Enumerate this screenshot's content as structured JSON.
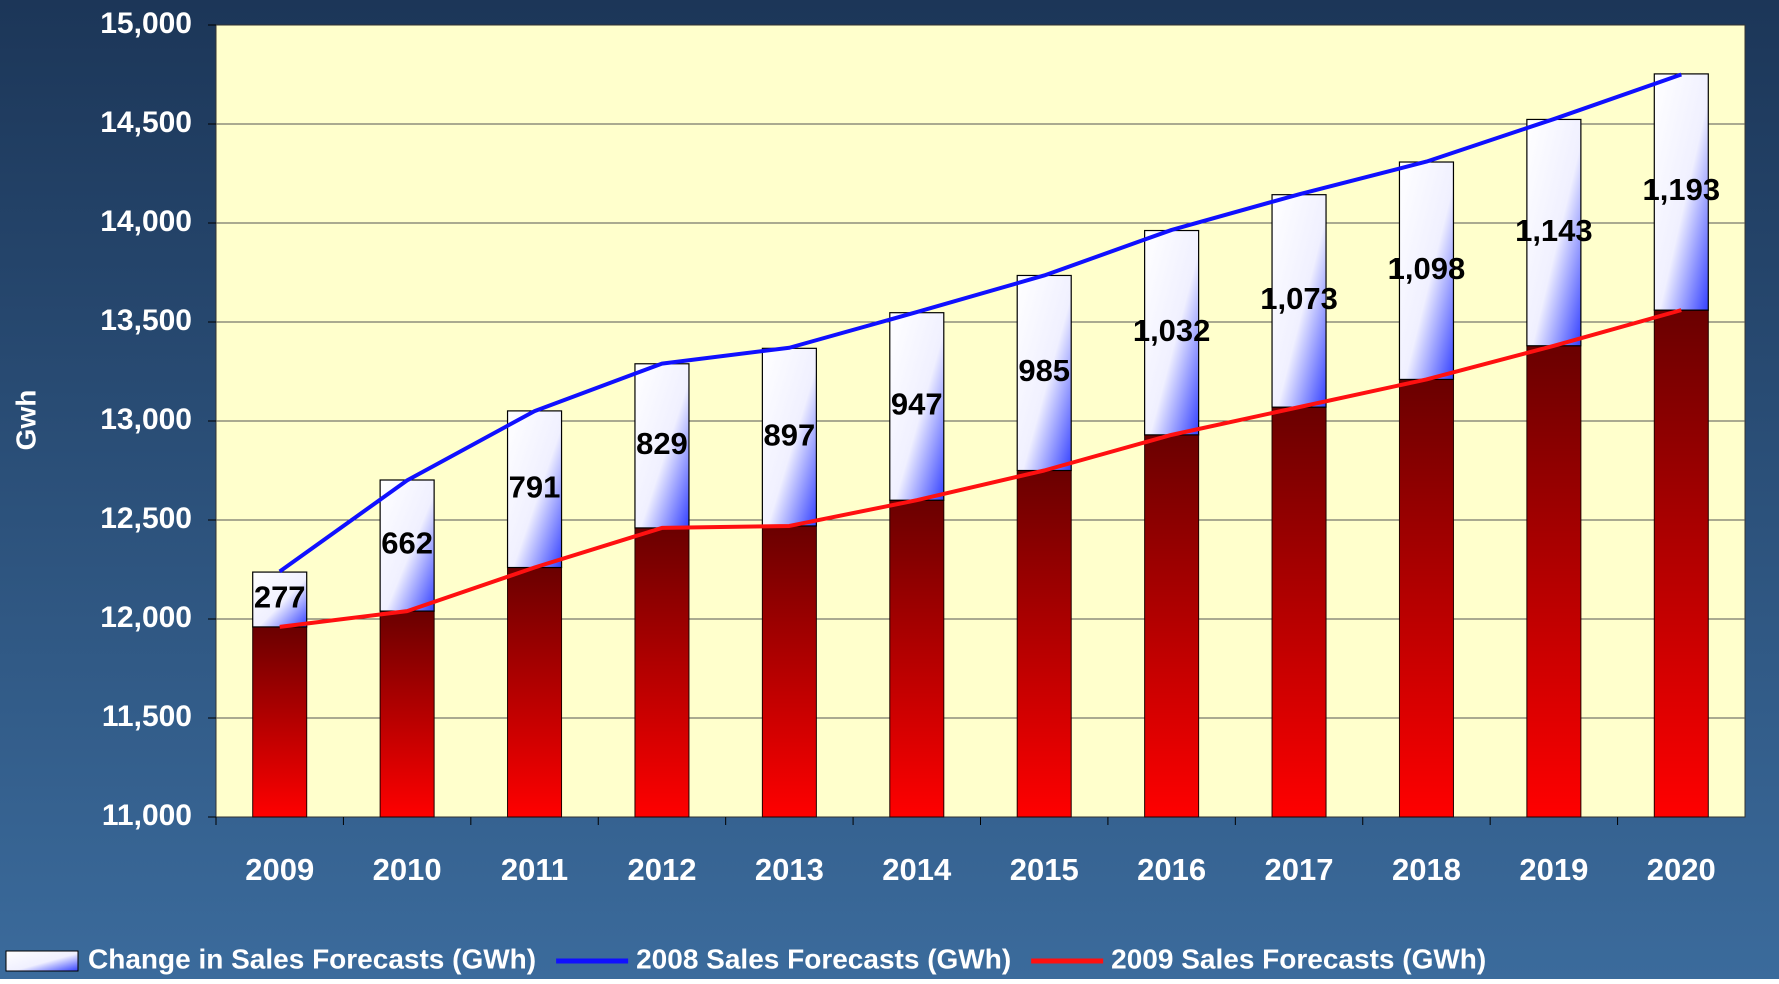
{
  "chart_data": {
    "type": "bar",
    "categories": [
      "2009",
      "2010",
      "2011",
      "2012",
      "2013",
      "2014",
      "2015",
      "2016",
      "2017",
      "2018",
      "2019",
      "2020"
    ],
    "y_label": "Gwh",
    "ylim": [
      11000,
      15000
    ],
    "yticks": [
      {
        "value": 11000,
        "label": "11,000"
      },
      {
        "value": 11500,
        "label": "11,500"
      },
      {
        "value": 12000,
        "label": "12,000"
      },
      {
        "value": 12500,
        "label": "12,500"
      },
      {
        "value": 13000,
        "label": "13,000"
      },
      {
        "value": 13500,
        "label": "13,500"
      },
      {
        "value": 14000,
        "label": "14,000"
      },
      {
        "value": 14500,
        "label": "14,500"
      },
      {
        "value": 15000,
        "label": "15,000"
      }
    ],
    "grid": true,
    "legend": "bottom",
    "series": [
      {
        "name": "Change in Sales Forecasts (GWh)",
        "type": "bar",
        "stacked_on": 2,
        "color": "#3340ff",
        "values": [
          277,
          662,
          791,
          829,
          897,
          947,
          985,
          1032,
          1073,
          1098,
          1143,
          1193
        ],
        "value_labels": [
          "277",
          "662",
          "791",
          "829",
          "897",
          "947",
          "985",
          "1,032",
          "1,073",
          "1,098",
          "1,143",
          "1,193"
        ]
      },
      {
        "name": "2008 Sales  Forecasts (GWh)",
        "type": "line",
        "color": "#1010ff",
        "values": [
          12240,
          12700,
          13050,
          13290,
          13370,
          13550,
          13735,
          13965,
          14145,
          14310,
          14525,
          14750
        ]
      },
      {
        "name": "2009 Sales Forecasts  (GWh)",
        "type": "line",
        "bars": true,
        "color": "#ff1010",
        "values": [
          11960,
          12040,
          12260,
          12460,
          12470,
          12600,
          12750,
          12930,
          13070,
          13210,
          13380,
          13560
        ]
      }
    ]
  }
}
